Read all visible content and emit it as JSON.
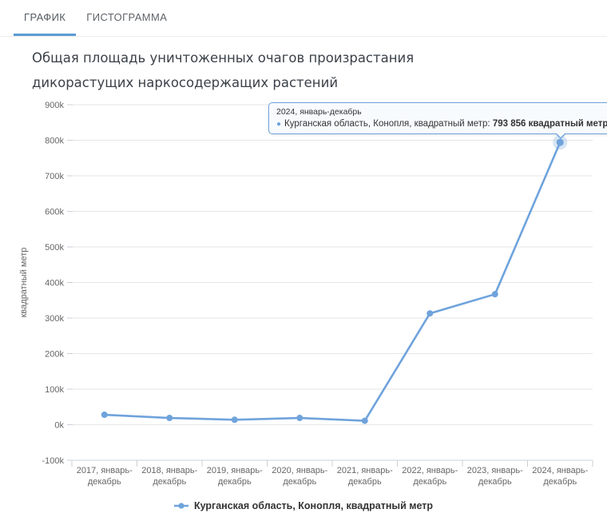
{
  "tabs": [
    {
      "label": "ГРАФИК",
      "active": true
    },
    {
      "label": "ГИСТОГРАММА",
      "active": false
    }
  ],
  "title": "Общая площадь уничтоженных очагов произрастания дикорастущих наркосодержащих растений",
  "chart_data": {
    "type": "line",
    "title": "Общая площадь уничтоженных очагов произрастания дикорастущих наркосодержащих растений",
    "xlabel": "",
    "ylabel": "квадратный метр",
    "categories": [
      "2017, январь-декабрь",
      "2018, январь-декабрь",
      "2019, январь-декабрь",
      "2020, январь-декабрь",
      "2021, январь-декабрь",
      "2022, январь-декабрь",
      "2023, январь-декабрь",
      "2024, январь-декабрь"
    ],
    "series": [
      {
        "name": "Курганская область, Конопля, квадратный метр",
        "color": "#6fa3dc",
        "values": [
          28000,
          19000,
          14000,
          19000,
          11000,
          313000,
          367000,
          793856
        ]
      }
    ],
    "ylim": [
      -100000,
      900000
    ],
    "ytick_step": 100000,
    "ytick_labels": [
      "-100k",
      "0k",
      "100k",
      "200k",
      "300k",
      "400k",
      "500k",
      "600k",
      "700k",
      "800k",
      "900k"
    ],
    "grid": true,
    "legend_position": "bottom",
    "highlighted_point": {
      "series": 0,
      "index": 7
    }
  },
  "tooltip": {
    "header": "2024, январь-декабрь",
    "series_name": "Курганская область, Конопля, квадратный метр",
    "separator": ": ",
    "value_bold": "793 856 квадратный метр"
  },
  "legend": {
    "label": "Курганская область, Конопля, квадратный метр"
  },
  "colors": {
    "series": "#6fa3dc",
    "tab_underline": "#5b9bd5",
    "grid": "#e6e6e6",
    "axis": "#c9d0d8",
    "muted_text": "#666666",
    "tooltip_bg": "#f8fbfe"
  }
}
